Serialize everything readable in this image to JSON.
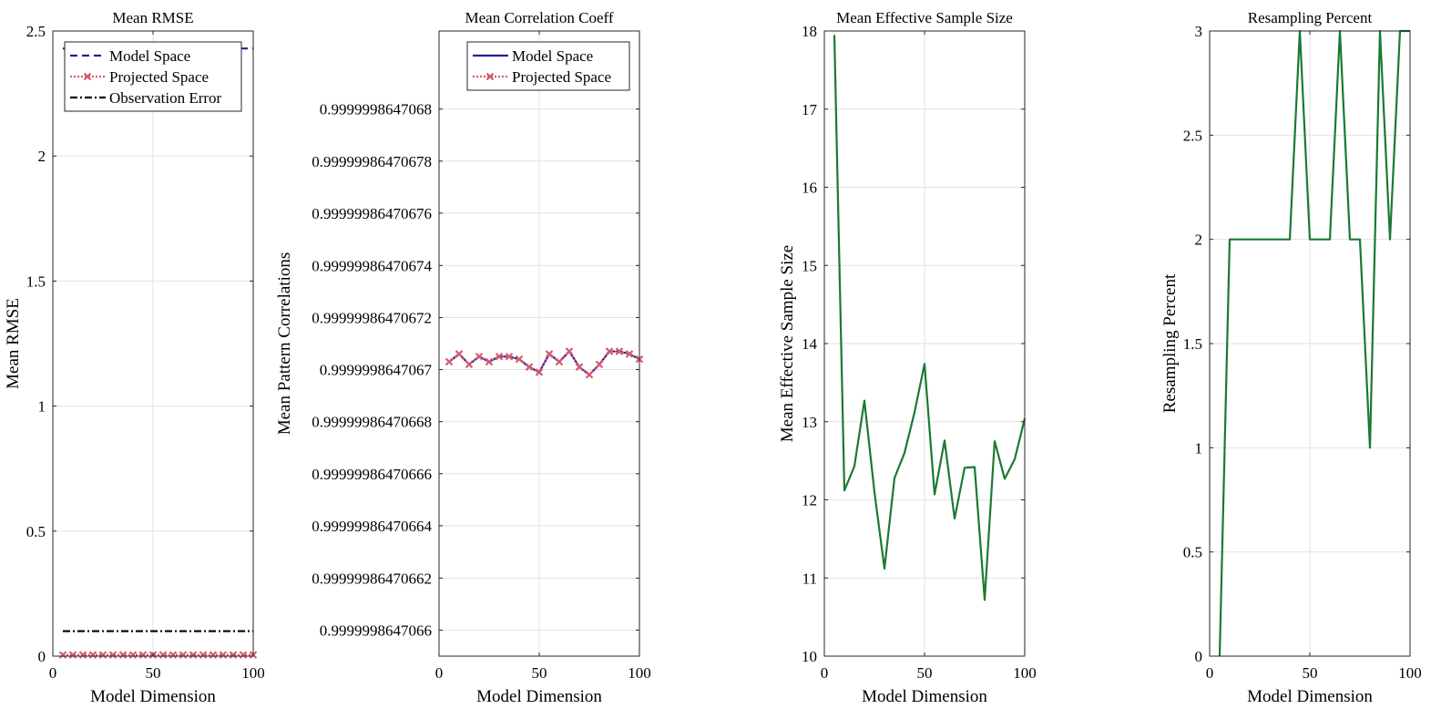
{
  "chart_data": [
    {
      "type": "line",
      "title": "Mean RMSE",
      "xlabel": "Model Dimension",
      "ylabel": "Mean RMSE",
      "xlim": [
        0,
        100
      ],
      "ylim": [
        0,
        2.5
      ],
      "xticks": [
        0,
        50,
        100
      ],
      "yticks": [
        0,
        0.5,
        1,
        1.5,
        2,
        2.5
      ],
      "ytick_labels": [
        "0",
        "0.5",
        "1",
        "1.5",
        "2",
        "2.5"
      ],
      "grid": true,
      "legend": "top-right",
      "x": [
        5,
        10,
        15,
        20,
        25,
        30,
        35,
        40,
        45,
        50,
        55,
        60,
        65,
        70,
        75,
        80,
        85,
        90,
        95,
        100
      ],
      "series": [
        {
          "name": "Model Space",
          "color": "#1f1f9e",
          "style": "dashed",
          "marker": "none",
          "values": [
            2.43,
            2.43,
            2.43,
            2.43,
            2.43,
            2.43,
            2.43,
            2.43,
            2.43,
            2.43,
            2.43,
            2.43,
            2.43,
            2.43,
            2.43,
            2.43,
            2.43,
            2.43,
            2.43,
            2.43
          ]
        },
        {
          "name": "Projected Space",
          "color": "#d45b73",
          "style": "dotted",
          "marker": "x",
          "values": [
            0.005,
            0.005,
            0.005,
            0.005,
            0.005,
            0.005,
            0.005,
            0.005,
            0.005,
            0.005,
            0.005,
            0.005,
            0.005,
            0.005,
            0.005,
            0.005,
            0.005,
            0.005,
            0.005,
            0.005
          ]
        },
        {
          "name": "Observation Error",
          "color": "#000000",
          "style": "dashdot",
          "marker": "none",
          "values": [
            0.1,
            0.1,
            0.1,
            0.1,
            0.1,
            0.1,
            0.1,
            0.1,
            0.1,
            0.1,
            0.1,
            0.1,
            0.1,
            0.1,
            0.1,
            0.1,
            0.1,
            0.1,
            0.1,
            0.1
          ]
        }
      ]
    },
    {
      "type": "line",
      "title": "Mean Correlation Coeff",
      "xlabel": "Model Dimension",
      "ylabel": "Mean Pattern Correlations",
      "xlim": [
        0,
        100
      ],
      "ylim": [
        0.99999986470659,
        0.99999986470683
      ],
      "xticks": [
        0,
        50,
        100
      ],
      "yticks": [
        0.9999998647066,
        0.99999986470662,
        0.99999986470664,
        0.99999986470666,
        0.99999986470668,
        0.9999998647067,
        0.99999986470672,
        0.99999986470674,
        0.99999986470676,
        0.99999986470678,
        0.9999998647068
      ],
      "ytick_labels": [
        "0.9999998647066",
        "0.99999986470662",
        "0.99999986470664",
        "0.99999986470666",
        "0.99999986470668",
        "0.9999998647067",
        "0.99999986470672",
        "0.99999986470674",
        "0.99999986470676",
        "0.99999986470678",
        "0.9999998647068"
      ],
      "grid": true,
      "legend": "top-right",
      "x": [
        5,
        10,
        15,
        20,
        25,
        30,
        35,
        40,
        45,
        50,
        55,
        60,
        65,
        70,
        75,
        80,
        85,
        90,
        95,
        100
      ],
      "series": [
        {
          "name": "Model Space",
          "color": "#1f1f9e",
          "style": "solid",
          "marker": "none",
          "values": [
            0.999999864706703,
            0.999999864706706,
            0.999999864706702,
            0.999999864706705,
            0.999999864706703,
            0.999999864706705,
            0.999999864706705,
            0.999999864706704,
            0.999999864706701,
            0.999999864706699,
            0.999999864706706,
            0.999999864706703,
            0.999999864706707,
            0.999999864706701,
            0.999999864706698,
            0.999999864706702,
            0.999999864706707,
            0.999999864706707,
            0.999999864706706,
            0.999999864706704
          ]
        },
        {
          "name": "Projected Space",
          "color": "#d45b73",
          "style": "dotted",
          "marker": "x",
          "values": [
            0.999999864706703,
            0.999999864706706,
            0.999999864706702,
            0.999999864706705,
            0.999999864706703,
            0.999999864706705,
            0.999999864706705,
            0.999999864706704,
            0.999999864706701,
            0.999999864706699,
            0.999999864706706,
            0.999999864706703,
            0.999999864706707,
            0.999999864706701,
            0.999999864706698,
            0.999999864706702,
            0.999999864706707,
            0.999999864706707,
            0.999999864706706,
            0.999999864706704
          ]
        }
      ]
    },
    {
      "type": "line",
      "title": "Mean Effective Sample Size",
      "xlabel": "Model Dimension",
      "ylabel": "Mean Effective Sample Size",
      "xlim": [
        0,
        100
      ],
      "ylim": [
        10,
        18
      ],
      "xticks": [
        0,
        50,
        100
      ],
      "yticks": [
        10,
        11,
        12,
        13,
        14,
        15,
        16,
        17,
        18
      ],
      "ytick_labels": [
        "10",
        "11",
        "12",
        "13",
        "14",
        "15",
        "16",
        "17",
        "18"
      ],
      "grid": true,
      "x": [
        5,
        10,
        15,
        20,
        25,
        30,
        35,
        40,
        45,
        50,
        55,
        60,
        65,
        70,
        75,
        80,
        85,
        90,
        95,
        100
      ],
      "series": [
        {
          "color": "#1a7a32",
          "style": "solid",
          "values": [
            17.95,
            12.12,
            12.43,
            13.27,
            12.1,
            11.12,
            12.28,
            12.6,
            13.12,
            13.74,
            12.07,
            12.76,
            11.76,
            12.41,
            12.42,
            10.72,
            12.75,
            12.27,
            12.52,
            13.04
          ]
        }
      ]
    },
    {
      "type": "line",
      "title": "Resampling Percent",
      "xlabel": "Model Dimension",
      "ylabel": "Resampling Percent",
      "xlim": [
        0,
        100
      ],
      "ylim": [
        0,
        3
      ],
      "xticks": [
        0,
        50,
        100
      ],
      "yticks": [
        0,
        0.5,
        1,
        1.5,
        2,
        2.5,
        3
      ],
      "ytick_labels": [
        "0",
        "0.5",
        "1",
        "1.5",
        "2",
        "2.5",
        "3"
      ],
      "grid": true,
      "x": [
        5,
        10,
        15,
        20,
        25,
        30,
        35,
        40,
        45,
        50,
        55,
        60,
        65,
        70,
        75,
        80,
        85,
        90,
        95,
        100
      ],
      "series": [
        {
          "color": "#1a7a32",
          "style": "solid",
          "values": [
            0,
            2,
            2,
            2,
            2,
            2,
            2,
            2,
            3,
            2,
            2,
            2,
            3,
            2,
            2,
            1,
            3,
            2,
            3,
            3
          ]
        }
      ]
    }
  ]
}
